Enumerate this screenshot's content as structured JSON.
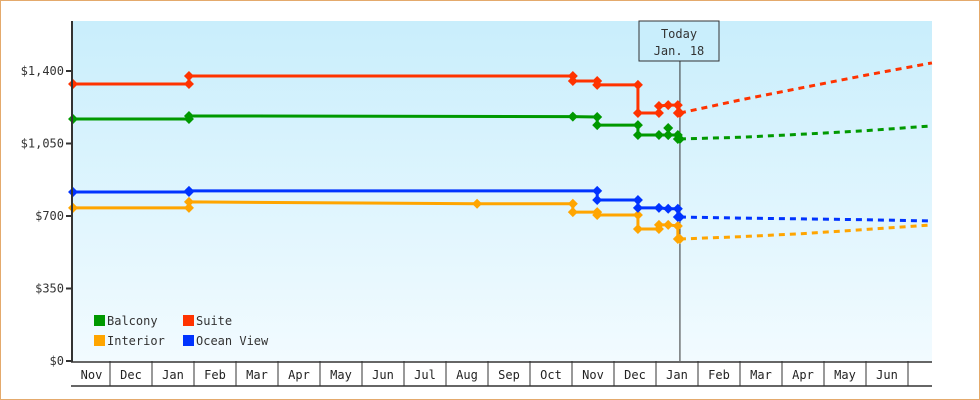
{
  "chart_data": {
    "type": "line",
    "title": "",
    "xlabel": "",
    "ylabel": "",
    "ylim": [
      0,
      1640
    ],
    "yticks": [
      {
        "value": 0,
        "label": "$0"
      },
      {
        "value": 350,
        "label": "$350"
      },
      {
        "value": 700,
        "label": "$700"
      },
      {
        "value": 1050,
        "label": "$1,050"
      },
      {
        "value": 1400,
        "label": "$1,400"
      }
    ],
    "x_unit": "months since start of first Nov",
    "xlim": [
      0.12,
      20.57
    ],
    "months": [
      "Nov",
      "Dec",
      "Jan",
      "Feb",
      "Mar",
      "Apr",
      "May",
      "Jun",
      "Jul",
      "Aug",
      "Sep",
      "Oct",
      "Nov",
      "Dec",
      "Jan",
      "Feb",
      "Mar",
      "Apr",
      "May",
      "Jun"
    ],
    "today": {
      "x": 14.57,
      "line1": "Today",
      "line2": "Jan. 18"
    },
    "legend": [
      "Balcony",
      "Suite",
      "Interior",
      "Ocean View"
    ],
    "legend_position": "bottom-left",
    "series": [
      {
        "name": "Balcony",
        "color": "#009900",
        "points": [
          [
            0.12,
            1168
          ],
          [
            2.88,
            1168
          ],
          [
            2.88,
            1183
          ],
          [
            12.02,
            1180
          ],
          [
            12.6,
            1178
          ],
          [
            12.6,
            1139
          ],
          [
            13.57,
            1139
          ],
          [
            13.57,
            1091
          ],
          [
            14.07,
            1091
          ],
          [
            14.29,
            1091
          ],
          [
            14.29,
            1125
          ],
          [
            14.29,
            1091
          ],
          [
            14.52,
            1091
          ],
          [
            14.52,
            1072
          ],
          [
            14.57,
            1072
          ]
        ],
        "forecast": [
          [
            14.57,
            1072
          ],
          [
            16,
            1080
          ],
          [
            17.5,
            1095
          ],
          [
            19,
            1112
          ],
          [
            20.57,
            1135
          ]
        ]
      },
      {
        "name": "Suite",
        "color": "#ff3300",
        "points": [
          [
            0.12,
            1337
          ],
          [
            2.88,
            1337
          ],
          [
            2.88,
            1376
          ],
          [
            12.02,
            1376
          ],
          [
            12.02,
            1352
          ],
          [
            12.6,
            1352
          ],
          [
            12.6,
            1333
          ],
          [
            13.57,
            1333
          ],
          [
            13.57,
            1197
          ],
          [
            14.07,
            1197
          ],
          [
            14.07,
            1231
          ],
          [
            14.29,
            1235
          ],
          [
            14.52,
            1235
          ],
          [
            14.52,
            1197
          ],
          [
            14.57,
            1197
          ]
        ],
        "forecast": [
          [
            14.57,
            1197
          ],
          [
            16,
            1260
          ],
          [
            17.5,
            1320
          ],
          [
            19,
            1380
          ],
          [
            20.57,
            1439
          ]
        ]
      },
      {
        "name": "Interior",
        "color": "#ffa500",
        "points": [
          [
            0.12,
            739
          ],
          [
            2.88,
            739
          ],
          [
            2.88,
            768
          ],
          [
            9.74,
            759
          ],
          [
            12.02,
            759
          ],
          [
            12.02,
            719
          ],
          [
            12.6,
            719
          ],
          [
            12.6,
            705
          ],
          [
            13.57,
            705
          ],
          [
            13.57,
            637
          ],
          [
            14.07,
            637
          ],
          [
            14.07,
            657
          ],
          [
            14.29,
            657
          ],
          [
            14.52,
            652
          ],
          [
            14.52,
            589
          ],
          [
            14.57,
            589
          ]
        ],
        "forecast": [
          [
            14.57,
            589
          ],
          [
            16,
            600
          ],
          [
            17.5,
            615
          ],
          [
            19,
            635
          ],
          [
            20.57,
            657
          ]
        ]
      },
      {
        "name": "Ocean View",
        "color": "#0033ff",
        "points": [
          [
            0.12,
            816
          ],
          [
            2.88,
            816
          ],
          [
            2.88,
            821
          ],
          [
            12.6,
            821
          ],
          [
            12.6,
            777
          ],
          [
            13.57,
            777
          ],
          [
            13.57,
            739
          ],
          [
            14.07,
            739
          ],
          [
            14.29,
            735
          ],
          [
            14.52,
            735
          ],
          [
            14.52,
            695
          ],
          [
            14.57,
            695
          ]
        ],
        "forecast": [
          [
            14.57,
            695
          ],
          [
            16,
            690
          ],
          [
            17.5,
            686
          ],
          [
            19,
            682
          ],
          [
            20.57,
            676
          ]
        ]
      }
    ]
  }
}
